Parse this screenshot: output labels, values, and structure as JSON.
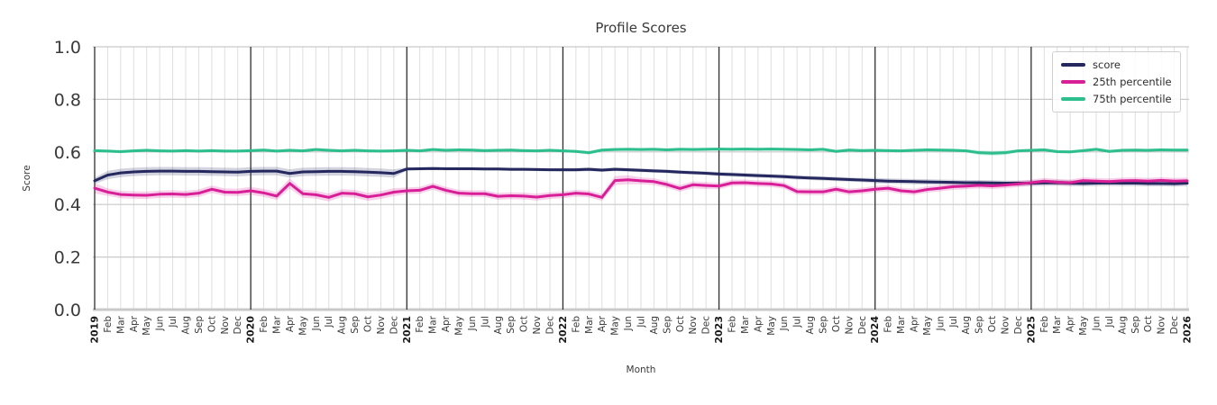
{
  "chart_data": {
    "type": "line",
    "title": "Profile Scores",
    "xlabel": "Month",
    "ylabel": "Score",
    "ylim": [
      0.0,
      1.0
    ],
    "ytick_step": 0.2,
    "ytick_labels": [
      "0.0",
      "0.2",
      "0.4",
      "0.6",
      "0.8",
      "1.0"
    ],
    "grid": true,
    "legend_position": "upper right",
    "x_labels": [
      "2019",
      "Feb",
      "Mar",
      "Apr",
      "May",
      "Jun",
      "Jul",
      "Aug",
      "Sep",
      "Oct",
      "Nov",
      "Dec",
      "2020",
      "Feb",
      "Mar",
      "Apr",
      "May",
      "Jun",
      "Jul",
      "Aug",
      "Sep",
      "Oct",
      "Nov",
      "Dec",
      "2021",
      "Feb",
      "Mar",
      "Apr",
      "May",
      "Jun",
      "Jul",
      "Aug",
      "Sep",
      "Oct",
      "Nov",
      "Dec",
      "2022",
      "Feb",
      "Mar",
      "Apr",
      "May",
      "Jun",
      "Jul",
      "Aug",
      "Sep",
      "Oct",
      "Nov",
      "Dec",
      "2023",
      "Feb",
      "Mar",
      "Apr",
      "May",
      "Jun",
      "Jul",
      "Aug",
      "Sep",
      "Oct",
      "Nov",
      "Dec",
      "2024",
      "Feb",
      "Mar",
      "Apr",
      "May",
      "Jun",
      "Jul",
      "Aug",
      "Sep",
      "Oct",
      "Nov",
      "Dec",
      "2025",
      "Feb",
      "Mar",
      "Apr",
      "May",
      "Jun",
      "Jul",
      "Aug",
      "Sep",
      "Oct",
      "Nov",
      "Dec",
      "2026"
    ],
    "year_tick_indices": [
      0,
      12,
      24,
      36,
      48,
      60,
      72,
      84
    ],
    "series": [
      {
        "name": "score",
        "color": "#24285e",
        "values": [
          0.49,
          0.512,
          0.52,
          0.524,
          0.526,
          0.527,
          0.527,
          0.526,
          0.526,
          0.525,
          0.524,
          0.523,
          0.526,
          0.527,
          0.527,
          0.518,
          0.524,
          0.525,
          0.526,
          0.526,
          0.525,
          0.523,
          0.521,
          0.518,
          0.535,
          0.536,
          0.537,
          0.536,
          0.536,
          0.536,
          0.535,
          0.535,
          0.534,
          0.534,
          0.533,
          0.532,
          0.532,
          0.532,
          0.534,
          0.531,
          0.534,
          0.532,
          0.53,
          0.528,
          0.526,
          0.523,
          0.521,
          0.519,
          0.516,
          0.514,
          0.512,
          0.51,
          0.508,
          0.506,
          0.503,
          0.501,
          0.499,
          0.497,
          0.495,
          0.493,
          0.491,
          0.489,
          0.488,
          0.487,
          0.486,
          0.485,
          0.484,
          0.483,
          0.483,
          0.482,
          0.481,
          0.481,
          0.481,
          0.482,
          0.483,
          0.481,
          0.48,
          0.481,
          0.482,
          0.481,
          0.481,
          0.48,
          0.48,
          0.479,
          0.481
        ],
        "band": [
          0.012,
          0.016,
          0.016,
          0.016,
          0.016,
          0.016,
          0.016,
          0.016,
          0.016,
          0.016,
          0.016,
          0.016,
          0.016,
          0.016,
          0.016,
          0.016,
          0.016,
          0.016,
          0.016,
          0.016,
          0.016,
          0.016,
          0.016,
          0.016,
          0.006,
          0.006,
          0.006,
          0.006,
          0.006,
          0.006,
          0.006,
          0.006,
          0.006,
          0.006,
          0.006,
          0.006,
          0.007,
          0.007,
          0.007,
          0.007,
          0.007,
          0.007,
          0.007,
          0.007,
          0.007,
          0.007,
          0.007,
          0.007,
          0.008,
          0.008,
          0.008,
          0.008,
          0.008,
          0.008,
          0.008,
          0.008,
          0.008,
          0.008,
          0.008,
          0.008,
          0.01,
          0.01,
          0.01,
          0.01,
          0.01,
          0.01,
          0.01,
          0.01,
          0.01,
          0.01,
          0.01,
          0.01,
          0.011,
          0.011,
          0.011,
          0.011,
          0.011,
          0.011,
          0.011,
          0.011,
          0.011,
          0.011,
          0.011,
          0.011,
          0.011
        ]
      },
      {
        "name": "25th percentile",
        "color": "#d81f97",
        "values": [
          0.462,
          0.447,
          0.438,
          0.436,
          0.435,
          0.439,
          0.44,
          0.438,
          0.443,
          0.458,
          0.447,
          0.446,
          0.452,
          0.444,
          0.432,
          0.48,
          0.441,
          0.437,
          0.427,
          0.443,
          0.441,
          0.429,
          0.436,
          0.447,
          0.452,
          0.454,
          0.469,
          0.454,
          0.443,
          0.441,
          0.441,
          0.431,
          0.433,
          0.432,
          0.428,
          0.434,
          0.437,
          0.443,
          0.44,
          0.427,
          0.491,
          0.494,
          0.49,
          0.487,
          0.476,
          0.461,
          0.475,
          0.472,
          0.47,
          0.482,
          0.483,
          0.48,
          0.478,
          0.472,
          0.449,
          0.448,
          0.448,
          0.458,
          0.448,
          0.452,
          0.458,
          0.462,
          0.452,
          0.448,
          0.457,
          0.462,
          0.468,
          0.47,
          0.473,
          0.471,
          0.474,
          0.478,
          0.483,
          0.489,
          0.485,
          0.483,
          0.491,
          0.489,
          0.487,
          0.49,
          0.491,
          0.489,
          0.492,
          0.489,
          0.49
        ],
        "band": [
          0.02,
          0.014,
          0.014,
          0.014,
          0.014,
          0.014,
          0.014,
          0.014,
          0.014,
          0.014,
          0.014,
          0.014,
          0.015,
          0.015,
          0.015,
          0.02,
          0.015,
          0.015,
          0.015,
          0.015,
          0.015,
          0.015,
          0.015,
          0.015,
          0.013,
          0.013,
          0.013,
          0.013,
          0.013,
          0.013,
          0.013,
          0.013,
          0.013,
          0.013,
          0.013,
          0.013,
          0.013,
          0.013,
          0.013,
          0.013,
          0.017,
          0.017,
          0.013,
          0.013,
          0.013,
          0.013,
          0.013,
          0.013,
          0.012,
          0.012,
          0.012,
          0.012,
          0.012,
          0.012,
          0.012,
          0.012,
          0.012,
          0.012,
          0.012,
          0.012,
          0.012,
          0.012,
          0.012,
          0.012,
          0.012,
          0.012,
          0.012,
          0.012,
          0.012,
          0.012,
          0.012,
          0.012,
          0.012,
          0.012,
          0.012,
          0.012,
          0.012,
          0.012,
          0.012,
          0.012,
          0.012,
          0.012,
          0.012,
          0.012,
          0.012
        ]
      },
      {
        "name": "75th percentile",
        "color": "#2cbe8d",
        "values": [
          0.605,
          0.603,
          0.601,
          0.604,
          0.606,
          0.604,
          0.603,
          0.605,
          0.603,
          0.605,
          0.603,
          0.603,
          0.605,
          0.607,
          0.603,
          0.606,
          0.604,
          0.609,
          0.606,
          0.604,
          0.606,
          0.604,
          0.603,
          0.604,
          0.606,
          0.604,
          0.609,
          0.606,
          0.608,
          0.607,
          0.605,
          0.606,
          0.607,
          0.605,
          0.604,
          0.606,
          0.604,
          0.602,
          0.597,
          0.607,
          0.609,
          0.61,
          0.609,
          0.61,
          0.608,
          0.61,
          0.609,
          0.61,
          0.611,
          0.61,
          0.611,
          0.61,
          0.611,
          0.61,
          0.609,
          0.608,
          0.61,
          0.602,
          0.607,
          0.605,
          0.606,
          0.605,
          0.604,
          0.606,
          0.608,
          0.607,
          0.606,
          0.604,
          0.597,
          0.595,
          0.597,
          0.604,
          0.606,
          0.608,
          0.601,
          0.6,
          0.605,
          0.61,
          0.602,
          0.606,
          0.607,
          0.606,
          0.608,
          0.607,
          0.607
        ],
        "band": [
          0.006,
          0.006,
          0.006,
          0.006,
          0.006,
          0.006,
          0.006,
          0.006,
          0.006,
          0.006,
          0.006,
          0.006,
          0.006,
          0.006,
          0.006,
          0.006,
          0.006,
          0.006,
          0.006,
          0.006,
          0.006,
          0.006,
          0.006,
          0.006,
          0.006,
          0.006,
          0.006,
          0.006,
          0.006,
          0.006,
          0.006,
          0.006,
          0.006,
          0.006,
          0.006,
          0.006,
          0.006,
          0.006,
          0.008,
          0.006,
          0.006,
          0.006,
          0.006,
          0.006,
          0.006,
          0.006,
          0.006,
          0.006,
          0.006,
          0.006,
          0.006,
          0.006,
          0.006,
          0.006,
          0.006,
          0.006,
          0.006,
          0.006,
          0.006,
          0.006,
          0.006,
          0.006,
          0.006,
          0.006,
          0.006,
          0.006,
          0.006,
          0.006,
          0.009,
          0.009,
          0.009,
          0.006,
          0.006,
          0.006,
          0.006,
          0.006,
          0.006,
          0.006,
          0.006,
          0.006,
          0.006,
          0.006,
          0.006,
          0.006,
          0.006
        ]
      }
    ]
  }
}
